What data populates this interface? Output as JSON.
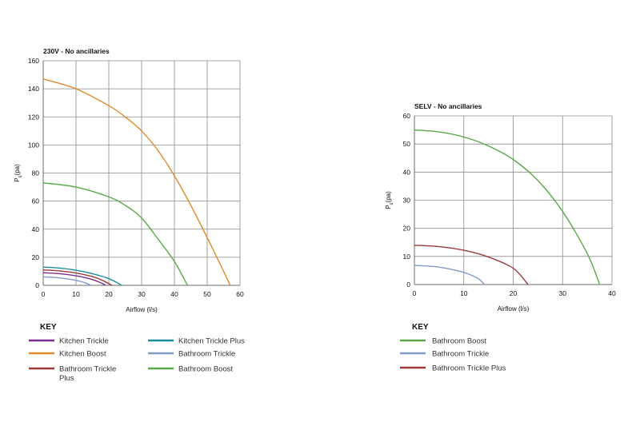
{
  "colors": {
    "kitchen_trickle": "#7b2a8f",
    "kitchen_boost": "#e08a2c",
    "bathroom_trickle_plus": "#9b3b3b",
    "kitchen_trickle_plus": "#1f8a9c",
    "bathroom_trickle": "#7f9bc6",
    "bathroom_boost": "#5aa84a"
  },
  "chart_data": [
    {
      "type": "line",
      "title": "230V - No ancillaries",
      "xlabel": "Airflow (l/s)",
      "ylabel": "Ps(pa)",
      "xlim": [
        0,
        60
      ],
      "ylim": [
        0,
        160
      ],
      "xticks": [
        0,
        10,
        20,
        30,
        40,
        50,
        60
      ],
      "yticks": [
        0,
        20,
        40,
        60,
        80,
        100,
        120,
        140,
        160
      ],
      "grid": true,
      "series": [
        {
          "name": "Kitchen Trickle",
          "color_key": "kitchen_trickle",
          "x": [
            0,
            5,
            10,
            14,
            17,
            19
          ],
          "y": [
            9,
            8.3,
            6.8,
            4.8,
            2.4,
            0
          ]
        },
        {
          "name": "Kitchen Boost",
          "color_key": "kitchen_boost",
          "x": [
            0,
            10,
            20,
            25,
            30,
            35,
            40,
            45,
            50,
            55,
            57
          ],
          "y": [
            147,
            140,
            128,
            120,
            110,
            96,
            78,
            57,
            34,
            10,
            0
          ]
        },
        {
          "name": "Bathroom Trickle Plus",
          "color_key": "bathroom_trickle_plus",
          "x": [
            0,
            5,
            10,
            15,
            18,
            21
          ],
          "y": [
            11,
            10.3,
            8.8,
            6.2,
            3.6,
            0
          ]
        },
        {
          "name": "Kitchen Trickle Plus",
          "color_key": "kitchen_trickle_plus",
          "x": [
            0,
            5,
            10,
            15,
            20,
            24
          ],
          "y": [
            13,
            12.3,
            10.8,
            8.3,
            4.8,
            0
          ]
        },
        {
          "name": "Bathroom Trickle",
          "color_key": "bathroom_trickle",
          "x": [
            0,
            4,
            8,
            11,
            13,
            14.5
          ],
          "y": [
            6,
            5.5,
            4.4,
            3,
            1.6,
            0
          ]
        },
        {
          "name": "Bathroom Boost",
          "color_key": "bathroom_boost",
          "x": [
            0,
            10,
            20,
            25,
            30,
            35,
            40,
            44
          ],
          "y": [
            73,
            70,
            63,
            57,
            48,
            33,
            17,
            0
          ]
        }
      ]
    },
    {
      "type": "line",
      "title": "SELV - No ancillaries",
      "xlabel": "Airflow (l/s)",
      "ylabel": "Ps(pa)",
      "xlim": [
        0,
        40
      ],
      "ylim": [
        0,
        60
      ],
      "xticks": [
        0,
        10,
        20,
        30,
        40
      ],
      "yticks": [
        0,
        10,
        20,
        30,
        40,
        50,
        60
      ],
      "grid": true,
      "series": [
        {
          "name": "Bathroom Boost",
          "color_key": "bathroom_boost",
          "x": [
            0,
            5,
            10,
            15,
            20,
            25,
            30,
            35,
            37.5
          ],
          "y": [
            55,
            54.3,
            52.5,
            49.3,
            44.5,
            37,
            26,
            11,
            0
          ]
        },
        {
          "name": "Bathroom Trickle",
          "color_key": "bathroom_trickle",
          "x": [
            0,
            4,
            8,
            11,
            13,
            14.2
          ],
          "y": [
            6.8,
            6.4,
            5.2,
            3.7,
            2,
            0
          ]
        },
        {
          "name": "Bathroom Trickle Plus",
          "color_key": "bathroom_trickle_plus",
          "x": [
            0,
            5,
            10,
            15,
            20,
            23
          ],
          "y": [
            14,
            13.5,
            12.2,
            9.8,
            5.8,
            0
          ]
        }
      ]
    }
  ],
  "keys": [
    {
      "heading": "KEY",
      "columns": [
        [
          {
            "label": "Kitchen Trickle",
            "color_key": "kitchen_trickle"
          },
          {
            "label": "Kitchen Boost",
            "color_key": "kitchen_boost"
          },
          {
            "label": "Bathroom Trickle Plus",
            "color_key": "bathroom_trickle_plus"
          }
        ],
        [
          {
            "label": "Kitchen Trickle Plus",
            "color_key": "kitchen_trickle_plus"
          },
          {
            "label": "Bathroom Trickle",
            "color_key": "bathroom_trickle"
          },
          {
            "label": "Bathroom Boost",
            "color_key": "bathroom_boost"
          }
        ]
      ]
    },
    {
      "heading": "KEY",
      "columns": [
        [
          {
            "label": "Bathroom Boost",
            "color_key": "bathroom_boost"
          },
          {
            "label": "Bathroom Trickle",
            "color_key": "bathroom_trickle"
          },
          {
            "label": "Bathroom Trickle Plus",
            "color_key": "bathroom_trickle_plus"
          }
        ]
      ]
    }
  ]
}
